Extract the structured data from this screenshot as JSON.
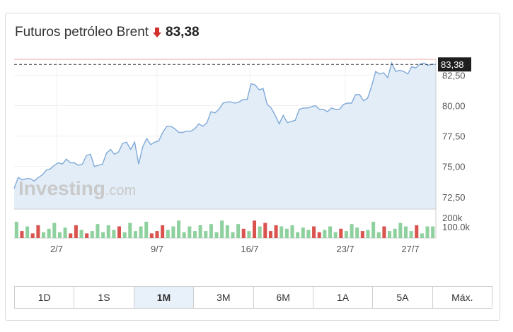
{
  "header": {
    "title": "Futuros petróleo Brent",
    "price": "83,38",
    "trend": "down",
    "trend_color": "#d32f2f"
  },
  "watermark": {
    "brand": "Investing",
    "suffix": ".com"
  },
  "tabs": [
    {
      "label": "1D",
      "active": false
    },
    {
      "label": "1S",
      "active": false
    },
    {
      "label": "1M",
      "active": true
    },
    {
      "label": "3M",
      "active": false
    },
    {
      "label": "6M",
      "active": false
    },
    {
      "label": "1A",
      "active": false
    },
    {
      "label": "5A",
      "active": false
    },
    {
      "label": "Máx.",
      "active": false
    }
  ],
  "colors": {
    "line": "#7fa9d8",
    "area": "#e3edf7",
    "vol_up": "#8fd19e",
    "vol_down": "#d9534f",
    "last_price_bg": "#1e1e1e"
  },
  "chart_data": {
    "type": "area",
    "ylim": [
      71.5,
      83.8
    ],
    "y_ticks": [
      72.5,
      75.0,
      77.5,
      80.0,
      82.5
    ],
    "y_tick_labels": [
      "72,50",
      "75,00",
      "77,50",
      "80,00",
      "82,50"
    ],
    "x_ticks": [
      "2/7",
      "9/7",
      "16/7",
      "23/7",
      "27/7"
    ],
    "last_price": 83.38,
    "last_price_label": "83,38",
    "price_series": [
      73.2,
      74.1,
      73.9,
      74.0,
      74.0,
      73.8,
      74.1,
      74.3,
      74.7,
      74.8,
      75.1,
      75.3,
      75.2,
      75.6,
      75.3,
      75.3,
      75.1,
      75.2,
      75.9,
      76.0,
      75.0,
      75.1,
      75.2,
      76.1,
      76.4,
      76.0,
      76.2,
      76.9,
      77.0,
      76.4,
      77.0,
      75.2,
      76.6,
      77.3,
      76.8,
      77.0,
      77.1,
      77.8,
      78.3,
      78.3,
      78.1,
      77.8,
      77.8,
      77.9,
      77.9,
      78.1,
      78.5,
      78.3,
      78.6,
      79.5,
      79.4,
      79.7,
      80.2,
      80.3,
      80.3,
      80.2,
      80.3,
      80.5,
      80.5,
      81.8,
      81.7,
      81.3,
      81.4,
      80.1,
      79.8,
      79.2,
      78.5,
      79.2,
      78.6,
      78.7,
      78.8,
      79.7,
      79.8,
      79.8,
      79.9,
      80.0,
      79.7,
      79.7,
      79.5,
      79.8,
      79.7,
      79.7,
      80.1,
      80.2,
      80.2,
      80.9,
      80.9,
      80.4,
      80.6,
      81.6,
      82.8,
      82.6,
      82.7,
      82.3,
      83.5,
      82.8,
      82.9,
      82.8,
      82.6,
      83.2,
      83.1,
      83.4,
      83.5,
      83.3,
      83.4,
      83.38
    ],
    "volume_labels": [
      "200k",
      "100.0k"
    ],
    "volume_bars": [
      {
        "v": 140,
        "up": true
      },
      {
        "v": 60,
        "up": false
      },
      {
        "v": 100,
        "up": true
      },
      {
        "v": 40,
        "up": false
      },
      {
        "v": 110,
        "up": false
      },
      {
        "v": 50,
        "up": true
      },
      {
        "v": 80,
        "up": true
      },
      {
        "v": 130,
        "up": true
      },
      {
        "v": 50,
        "up": true
      },
      {
        "v": 90,
        "up": true
      },
      {
        "v": 40,
        "up": false
      },
      {
        "v": 110,
        "up": false
      },
      {
        "v": 70,
        "up": true
      },
      {
        "v": 40,
        "up": false
      },
      {
        "v": 60,
        "up": true
      },
      {
        "v": 120,
        "up": true
      },
      {
        "v": 50,
        "up": true
      },
      {
        "v": 110,
        "up": true
      },
      {
        "v": 70,
        "up": true
      },
      {
        "v": 100,
        "up": false
      },
      {
        "v": 50,
        "up": true
      },
      {
        "v": 130,
        "up": true
      },
      {
        "v": 60,
        "up": true
      },
      {
        "v": 100,
        "up": true
      },
      {
        "v": 140,
        "up": true
      },
      {
        "v": 40,
        "up": false
      },
      {
        "v": 60,
        "up": false
      },
      {
        "v": 110,
        "up": false
      },
      {
        "v": 70,
        "up": true
      },
      {
        "v": 100,
        "up": true
      },
      {
        "v": 150,
        "up": true
      },
      {
        "v": 50,
        "up": true
      },
      {
        "v": 100,
        "up": true
      },
      {
        "v": 60,
        "up": true
      },
      {
        "v": 110,
        "up": true
      },
      {
        "v": 60,
        "up": true
      },
      {
        "v": 120,
        "up": true
      },
      {
        "v": 50,
        "up": true
      },
      {
        "v": 150,
        "up": true
      },
      {
        "v": 110,
        "up": true
      },
      {
        "v": 50,
        "up": true
      },
      {
        "v": 120,
        "up": true
      },
      {
        "v": 80,
        "up": false
      },
      {
        "v": 60,
        "up": true
      },
      {
        "v": 150,
        "up": false
      },
      {
        "v": 100,
        "up": true
      },
      {
        "v": 130,
        "up": false
      },
      {
        "v": 60,
        "up": false
      },
      {
        "v": 110,
        "up": false
      },
      {
        "v": 100,
        "up": true
      },
      {
        "v": 80,
        "up": true
      },
      {
        "v": 110,
        "up": true
      },
      {
        "v": 50,
        "up": true
      },
      {
        "v": 90,
        "up": true
      },
      {
        "v": 70,
        "up": true
      },
      {
        "v": 100,
        "up": false
      },
      {
        "v": 50,
        "up": false
      },
      {
        "v": 70,
        "up": true
      },
      {
        "v": 100,
        "up": true
      },
      {
        "v": 50,
        "up": true
      },
      {
        "v": 80,
        "up": false
      },
      {
        "v": 60,
        "up": true
      },
      {
        "v": 120,
        "up": true
      },
      {
        "v": 90,
        "up": true
      },
      {
        "v": 60,
        "up": false
      },
      {
        "v": 70,
        "up": true
      },
      {
        "v": 140,
        "up": true
      },
      {
        "v": 50,
        "up": true
      },
      {
        "v": 100,
        "up": false
      },
      {
        "v": 60,
        "up": true
      },
      {
        "v": 80,
        "up": true
      },
      {
        "v": 130,
        "up": true
      },
      {
        "v": 100,
        "up": true
      },
      {
        "v": 60,
        "up": true
      },
      {
        "v": 110,
        "up": false
      },
      {
        "v": 40,
        "up": true
      },
      {
        "v": 100,
        "up": true
      },
      {
        "v": 100,
        "up": true
      }
    ]
  }
}
